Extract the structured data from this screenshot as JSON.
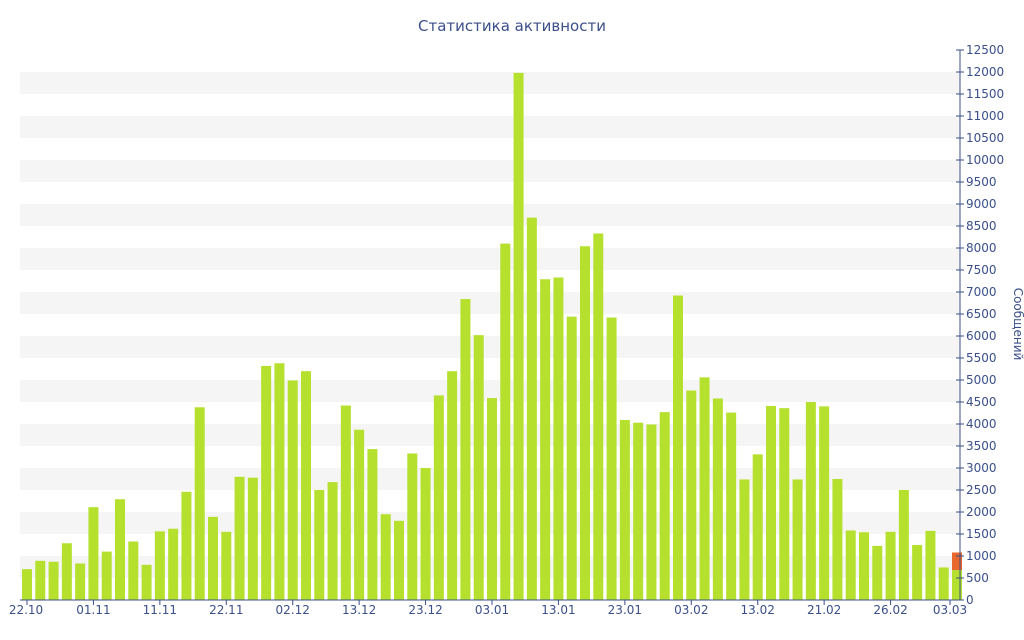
{
  "chart_data": {
    "type": "bar",
    "title": "Статистика активности",
    "ylabel": "Сообщений",
    "xlabel": "",
    "ylim": [
      0,
      12500
    ],
    "y_ticks": [
      0,
      500,
      1000,
      1500,
      2000,
      2500,
      3000,
      3500,
      4000,
      4500,
      5000,
      5500,
      6000,
      6500,
      7000,
      7500,
      8000,
      8500,
      9000,
      9500,
      10000,
      10500,
      11000,
      11500,
      12000,
      12500
    ],
    "x_tick_labels": [
      {
        "label": "22.10",
        "index": 0
      },
      {
        "label": "01.11",
        "index": 5
      },
      {
        "label": "11.11",
        "index": 10
      },
      {
        "label": "22.11",
        "index": 15
      },
      {
        "label": "02.12",
        "index": 20
      },
      {
        "label": "13.12",
        "index": 25
      },
      {
        "label": "23.12",
        "index": 30
      },
      {
        "label": "03.01",
        "index": 35
      },
      {
        "label": "13.01",
        "index": 40
      },
      {
        "label": "23.01",
        "index": 45
      },
      {
        "label": "03.02",
        "index": 50
      },
      {
        "label": "13.02",
        "index": 55
      },
      {
        "label": "21.02",
        "index": 60
      },
      {
        "label": "26.02",
        "index": 65
      },
      {
        "label": "03.03",
        "index": 70
      }
    ],
    "y_axis_position": "right",
    "grid": "horizontal alternating bands",
    "colors": {
      "bar": "#b5e02d",
      "highlight": "#e8672d",
      "band": "#f5f5f5",
      "axis": "#3b4f8a",
      "title": "#3b4f8a"
    },
    "values": [
      700,
      890,
      870,
      1290,
      830,
      2110,
      1100,
      2290,
      1330,
      800,
      1560,
      1620,
      2460,
      4380,
      1890,
      1550,
      2800,
      2780,
      5320,
      5380,
      4990,
      5200,
      2500,
      2680,
      4420,
      3870,
      3430,
      1950,
      1800,
      3330,
      3000,
      4650,
      5200,
      6840,
      6020,
      4590,
      8100,
      11980,
      8690,
      7290,
      7330,
      6440,
      8040,
      8330,
      6420,
      4090,
      4030,
      3990,
      4270,
      6920,
      4760,
      5060,
      4580,
      4260,
      2740,
      3310,
      4410,
      4360,
      2740,
      4500,
      4400,
      2750,
      1580,
      1540,
      1230,
      1550,
      2500,
      1250,
      1570,
      740,
      680
    ],
    "highlight_last": 1080
  }
}
